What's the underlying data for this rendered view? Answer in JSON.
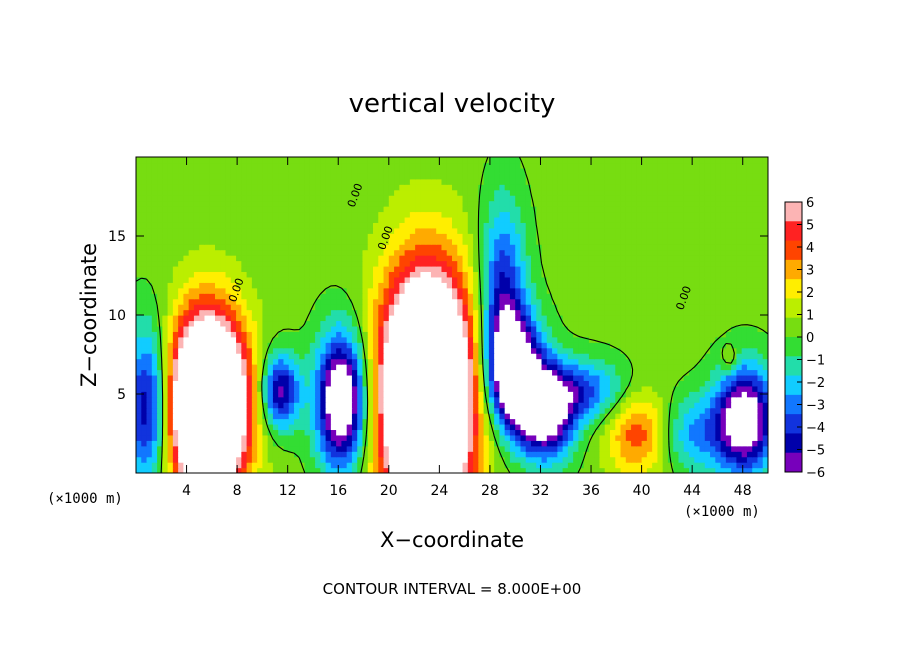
{
  "chart_data": {
    "type": "heatmap",
    "title": "vertical velocity",
    "xlabel": "X−coordinate",
    "ylabel": "Z−coordinate",
    "x_unit_label": "(×1000 m)",
    "z_unit_label": "(×1000 m)",
    "footer": "CONTOUR INTERVAL = 8.000E+00",
    "xlim": [
      0,
      50
    ],
    "ylim": [
      0,
      20
    ],
    "x_ticks": [
      4,
      8,
      12,
      16,
      20,
      24,
      28,
      32,
      36,
      40,
      44,
      48
    ],
    "y_ticks": [
      5,
      10,
      15
    ],
    "colorbar": {
      "ticks": [
        "6",
        "5",
        "4",
        "3",
        "2",
        "1",
        "0",
        "−1",
        "−2",
        "−3",
        "−4",
        "−5",
        "−6"
      ],
      "range": [
        -6,
        6
      ],
      "colors": [
        "#fcb4b4",
        "#ff2222",
        "#ff4400",
        "#ffaa00",
        "#ffee00",
        "#bbee00",
        "#77dd11",
        "#33dd33",
        "#22ddaa",
        "#11ccff",
        "#1177ff",
        "#1133dd",
        "#0000aa",
        "#7700bb"
      ]
    },
    "contour_label": "0.00",
    "features": [
      {
        "kind": "updraft",
        "x": 5.7,
        "z": 4.3,
        "rx": 3.0,
        "rz": 5.5,
        "peak": 16
      },
      {
        "kind": "updraft",
        "x": 23.0,
        "z": 5.0,
        "rx": 3.6,
        "rz": 7.5,
        "peak": 16
      },
      {
        "kind": "updraft",
        "x": 39.8,
        "z": 2.6,
        "rx": 2.6,
        "rz": 2.8,
        "peak": 4
      },
      {
        "kind": "updraft",
        "x": 47.0,
        "z": 7.2,
        "rx": 0.6,
        "rz": 0.8,
        "peak": 2
      },
      {
        "kind": "downdraft",
        "x": 1.0,
        "z": 4.2,
        "rx": 1.8,
        "rz": 5.0,
        "peak": -6
      },
      {
        "kind": "downdraft",
        "x": 11.4,
        "z": 5.2,
        "rx": 1.5,
        "rz": 2.4,
        "peak": -6
      },
      {
        "kind": "downdraft",
        "x": 16.3,
        "z": 4.6,
        "rx": 2.0,
        "rz": 4.2,
        "peak": -9
      },
      {
        "kind": "downdraft",
        "x": 29.0,
        "z": 11.0,
        "rx": 1.8,
        "rz": 6.0,
        "peak": -5
      },
      {
        "kind": "downdraft",
        "x": 30.0,
        "z": 6.5,
        "rx": 2.2,
        "rz": 3.5,
        "peak": -8
      },
      {
        "kind": "downdraft",
        "x": 32.4,
        "z": 3.6,
        "rx": 2.2,
        "rz": 2.8,
        "peak": -7
      },
      {
        "kind": "downdraft",
        "x": 35.0,
        "z": 5.2,
        "rx": 4.0,
        "rz": 2.0,
        "peak": -4
      },
      {
        "kind": "downdraft",
        "x": 48.2,
        "z": 3.4,
        "rx": 2.3,
        "rz": 3.3,
        "peak": -8
      },
      {
        "kind": "downdraft",
        "x": 44.0,
        "z": 2.5,
        "rx": 3.0,
        "rz": 2.5,
        "peak": -3
      }
    ]
  }
}
